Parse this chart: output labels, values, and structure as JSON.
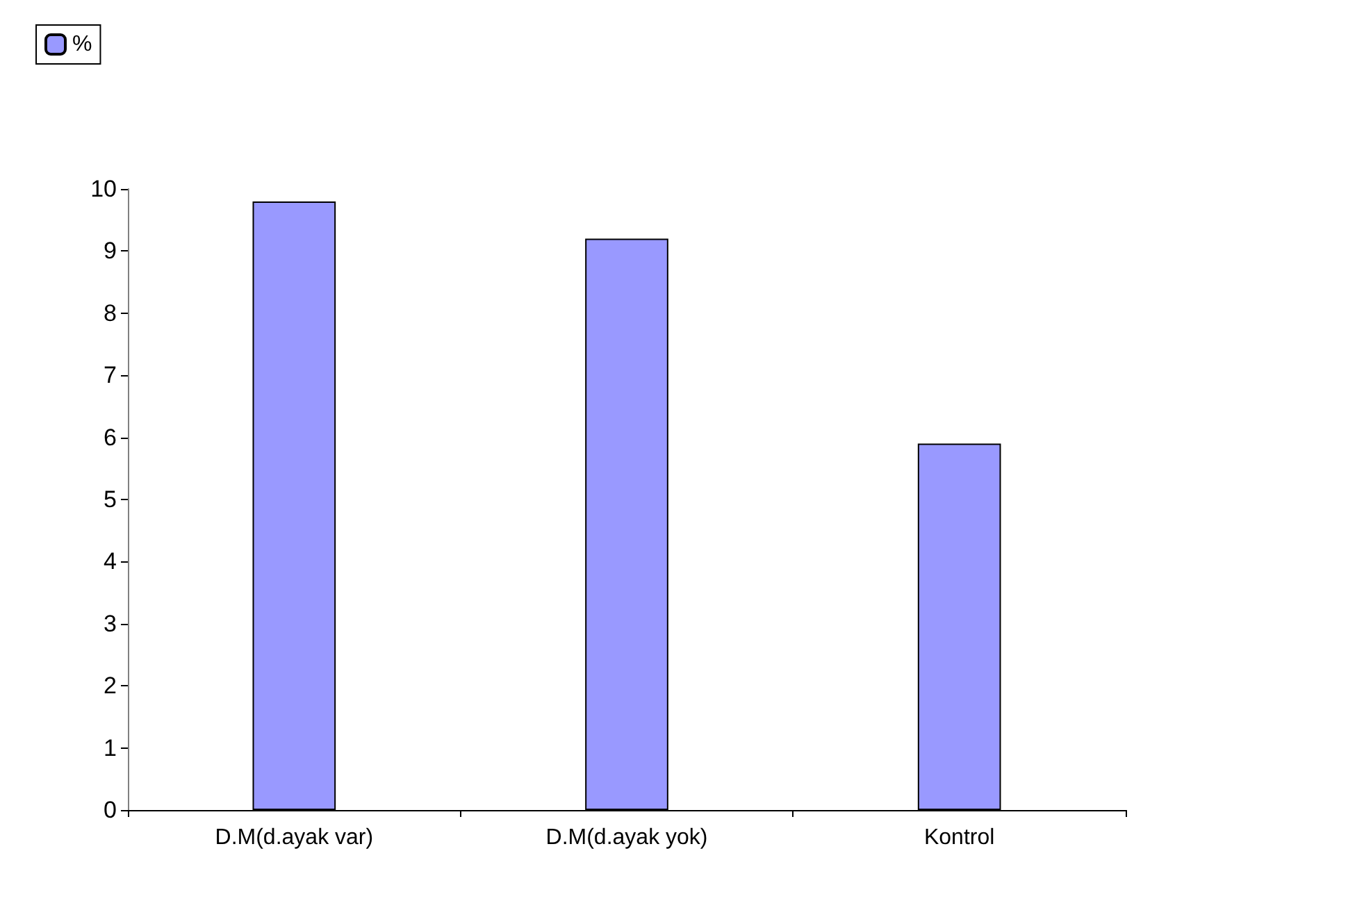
{
  "chart_data": {
    "type": "bar",
    "categories": [
      "D.M(d.ayak var)",
      "D.M(d.ayak yok)",
      "Kontrol"
    ],
    "series": [
      {
        "name": "%",
        "color": "#9999ff",
        "values": [
          9.8,
          9.2,
          5.9
        ]
      }
    ],
    "ylim": [
      0,
      10
    ],
    "yticks": [
      0,
      1,
      2,
      3,
      4,
      5,
      6,
      7,
      8,
      9,
      10
    ],
    "grid": false,
    "legend": "top left"
  }
}
